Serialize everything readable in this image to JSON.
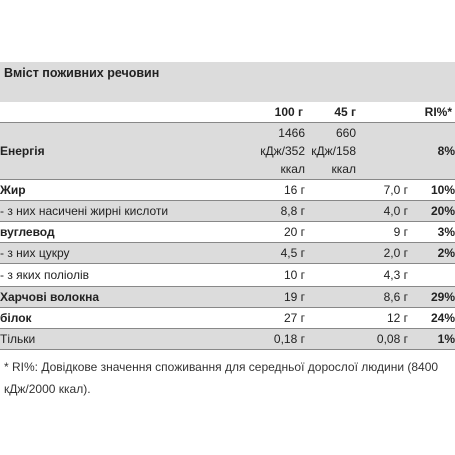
{
  "title": "Вміст поживних речовин",
  "columns": {
    "name": "",
    "per100": "100 г",
    "per45": "45 г",
    "ri": "RI%*"
  },
  "rows": [
    {
      "name": "Енергія",
      "per100": "1466\nкДж/352\nккал",
      "per45": "660 кДж/158\nккал",
      "ri": "8%",
      "bold": true,
      "gray": true
    },
    {
      "name": "Жир",
      "per100": "16 г",
      "per45": "7,0 г",
      "ri": "10%",
      "bold": true,
      "gray": false
    },
    {
      "name": "- з них насичені жирні кислоти",
      "per100": "8,8 г",
      "per45": "4,0 г",
      "ri": "20%",
      "bold": false,
      "gray": true
    },
    {
      "name": "вуглевод",
      "per100": "20 г",
      "per45": "9 г",
      "ri": "3%",
      "bold": true,
      "gray": false
    },
    {
      "name": "- з них цукру",
      "per100": "4,5 г",
      "per45": "2,0 г",
      "ri": "2%",
      "bold": false,
      "gray": true
    },
    {
      "name": "- з яких поліолів",
      "per100": "10 г",
      "per45": "4,3 г",
      "ri": "",
      "bold": false,
      "gray": false
    },
    {
      "name": "Харчові волокна",
      "per100": "19 г",
      "per45": "8,6 г",
      "ri": "29%",
      "bold": true,
      "gray": true
    },
    {
      "name": "білок",
      "per100": "27 г",
      "per45": "12 г",
      "ri": "24%",
      "bold": true,
      "gray": false
    },
    {
      "name": "Тільки",
      "per100": "0,18 г",
      "per45": "0,08 г",
      "ri": "1%",
      "bold": false,
      "gray": true
    }
  ],
  "footnote": "* RI%: Довідкове значення споживання для середньої дорослої людини (8400 кДж/2000 ккал)."
}
